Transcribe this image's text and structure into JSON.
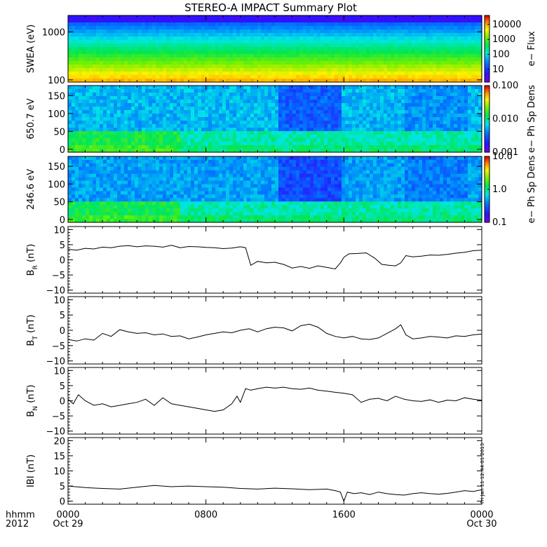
{
  "title": "STEREO-A IMPACT Summary Plot",
  "colors": {
    "line": "#000000",
    "frame": "#000000"
  },
  "x_axis": {
    "range_hours": [
      0,
      24
    ],
    "ticks": [
      {
        "hour": 0,
        "label": "0000",
        "sublabel": "Oct 29"
      },
      {
        "hour": 8,
        "label": "0800",
        "sublabel": ""
      },
      {
        "hour": 16,
        "label": "1600",
        "sublabel": ""
      },
      {
        "hour": 24,
        "label": "0000",
        "sublabel": "Oct 30"
      }
    ],
    "left_label_top": "hhmm",
    "left_label_bottom": "2012"
  },
  "timestamp_text": "Fri Jan 11 12:44:01 2013",
  "chart_data": [
    {
      "type": "heatmap",
      "ylabel": "SWEA (eV)",
      "yscale": "log",
      "ylim": [
        90,
        2200
      ],
      "yticks": [
        {
          "v": 100,
          "label": "100"
        },
        {
          "v": 1000,
          "label": "1000"
        }
      ],
      "colorbar": {
        "label": "e− Flux",
        "scale": "log",
        "range": [
          1.4,
          40000
        ],
        "ticks": [
          {
            "v": 10,
            "label": "10"
          },
          {
            "v": 100,
            "label": "100"
          },
          {
            "v": 1000,
            "label": "1000"
          },
          {
            "v": 10000,
            "label": "10000"
          }
        ]
      },
      "description_rows": "flux decreases with energy"
    },
    {
      "type": "heatmap",
      "ylabel": "650.7 eV",
      "yscale": "linear",
      "ylim": [
        -8,
        178
      ],
      "yticks": [
        {
          "v": 0,
          "label": "0"
        },
        {
          "v": 50,
          "label": "50"
        },
        {
          "v": 100,
          "label": "100"
        },
        {
          "v": 150,
          "label": "150"
        }
      ],
      "colorbar": {
        "label": "e− Ph Sp Dens",
        "scale": "log",
        "range": [
          0.001,
          0.1
        ],
        "ticks": [
          {
            "v": 0.001,
            "label": "0.001"
          },
          {
            "v": 0.01,
            "label": "0.010"
          },
          {
            "v": 0.1,
            "label": "0.100"
          }
        ]
      }
    },
    {
      "type": "heatmap",
      "ylabel": "246.6 eV",
      "yscale": "linear",
      "ylim": [
        -8,
        178
      ],
      "yticks": [
        {
          "v": 0,
          "label": "0"
        },
        {
          "v": 50,
          "label": "50"
        },
        {
          "v": 100,
          "label": "100"
        },
        {
          "v": 150,
          "label": "150"
        }
      ],
      "colorbar": {
        "label": "e− Ph Sp Dens",
        "scale": "log",
        "range": [
          0.1,
          10
        ],
        "ticks": [
          {
            "v": 0.1,
            "label": "0.1"
          },
          {
            "v": 1,
            "label": "1.0"
          },
          {
            "v": 10,
            "label": "10.0"
          }
        ]
      }
    },
    {
      "type": "line",
      "ylabel": "B_R (nT)",
      "ylabel_main": "B",
      "ylabel_sub": "R",
      "ylabel_unit": " (nT)",
      "ylim": [
        -11,
        11
      ],
      "yticks": [
        {
          "v": -10,
          "label": "−10"
        },
        {
          "v": -5,
          "label": "−5"
        },
        {
          "v": 0,
          "label": "0"
        },
        {
          "v": 5,
          "label": "5"
        },
        {
          "v": 10,
          "label": "10"
        }
      ],
      "x": [
        0,
        0.5,
        1,
        1.5,
        2,
        2.5,
        3,
        3.5,
        4,
        4.5,
        5,
        5.5,
        6,
        6.5,
        7,
        7.5,
        8,
        8.5,
        9,
        9.5,
        10,
        10.3,
        10.6,
        11,
        11.5,
        12,
        12.5,
        13,
        13.5,
        14,
        14.5,
        15,
        15.5,
        15.8,
        16,
        16.3,
        16.8,
        17.3,
        17.8,
        18.2,
        18.6,
        19,
        19.3,
        19.6,
        20,
        20.5,
        21,
        21.5,
        22,
        22.5,
        23,
        23.5,
        24
      ],
      "values": [
        3.5,
        3.2,
        3.8,
        3.6,
        4.2,
        4.0,
        4.5,
        4.7,
        4.3,
        4.6,
        4.5,
        4.2,
        4.8,
        4.0,
        4.4,
        4.3,
        4.1,
        4.0,
        3.7,
        3.9,
        4.3,
        4.0,
        -1.8,
        -0.5,
        -1.0,
        -0.8,
        -1.5,
        -2.7,
        -2.2,
        -2.8,
        -2.0,
        -2.5,
        -3.0,
        -1.0,
        0.8,
        2.0,
        2.1,
        2.3,
        0.5,
        -1.5,
        -1.8,
        -2.0,
        -1.0,
        1.4,
        1.0,
        1.2,
        1.6,
        1.5,
        1.8,
        2.2,
        2.5,
        3.0,
        3.2
      ]
    },
    {
      "type": "line",
      "ylabel": "B_T (nT)",
      "ylabel_main": "B",
      "ylabel_sub": "T",
      "ylabel_unit": " (nT)",
      "ylim": [
        -11,
        11
      ],
      "yticks": [
        {
          "v": -10,
          "label": "−10"
        },
        {
          "v": -5,
          "label": "−5"
        },
        {
          "v": 0,
          "label": "0"
        },
        {
          "v": 5,
          "label": "5"
        },
        {
          "v": 10,
          "label": "10"
        }
      ],
      "x": [
        0,
        0.5,
        1,
        1.5,
        2,
        2.5,
        3,
        3.5,
        4,
        4.5,
        5,
        5.5,
        6,
        6.5,
        7,
        7.5,
        8,
        8.5,
        9,
        9.5,
        10,
        10.5,
        11,
        11.5,
        12,
        12.5,
        13,
        13.5,
        14,
        14.5,
        15,
        15.5,
        16,
        16.5,
        17,
        17.5,
        18,
        18.5,
        19,
        19.3,
        19.6,
        20,
        20.5,
        21,
        21.5,
        22,
        22.5,
        23,
        23.5,
        24
      ],
      "values": [
        -3.0,
        -3.5,
        -2.8,
        -3.2,
        -1.0,
        -2.0,
        0.2,
        -0.5,
        -1.0,
        -0.8,
        -1.5,
        -1.2,
        -2.0,
        -1.8,
        -2.8,
        -2.2,
        -1.5,
        -1.0,
        -0.5,
        -0.8,
        0.0,
        0.5,
        -0.5,
        0.5,
        1.0,
        0.8,
        -0.2,
        1.5,
        2.0,
        1.0,
        -1.0,
        -2.0,
        -2.5,
        -2.0,
        -2.8,
        -3.0,
        -2.5,
        -1.0,
        0.5,
        1.8,
        -1.5,
        -2.8,
        -2.5,
        -2.0,
        -2.2,
        -2.5,
        -1.8,
        -2.0,
        -1.5,
        -1.2
      ]
    },
    {
      "type": "line",
      "ylabel": "B_N (nT)",
      "ylabel_main": "B",
      "ylabel_sub": "N",
      "ylabel_unit": " (nT)",
      "ylim": [
        -11,
        11
      ],
      "yticks": [
        {
          "v": -10,
          "label": "−10"
        },
        {
          "v": -5,
          "label": "−5"
        },
        {
          "v": 0,
          "label": "0"
        },
        {
          "v": 5,
          "label": "5"
        },
        {
          "v": 10,
          "label": "10"
        }
      ],
      "x": [
        0,
        0.3,
        0.6,
        1,
        1.5,
        2,
        2.5,
        3,
        3.5,
        4,
        4.5,
        5,
        5.5,
        6,
        6.5,
        7,
        7.5,
        8,
        8.5,
        9,
        9.5,
        9.8,
        10,
        10.3,
        10.6,
        11,
        11.5,
        12,
        12.5,
        13,
        13.5,
        14,
        14.5,
        15,
        15.5,
        16,
        16.5,
        17,
        17.5,
        18,
        18.5,
        19,
        19.5,
        20,
        20.5,
        21,
        21.5,
        22,
        22.5,
        23,
        23.5,
        24
      ],
      "values": [
        0.5,
        -1.0,
        2.0,
        0.0,
        -1.5,
        -1.0,
        -2.0,
        -1.5,
        -1.0,
        -0.5,
        0.5,
        -1.5,
        1.0,
        -1.0,
        -1.5,
        -2.0,
        -2.5,
        -3.0,
        -3.5,
        -3.0,
        -1.0,
        1.5,
        -0.5,
        4.0,
        3.5,
        4.0,
        4.5,
        4.2,
        4.5,
        4.0,
        3.8,
        4.2,
        3.5,
        3.2,
        2.8,
        2.5,
        2.0,
        -0.5,
        0.5,
        0.8,
        0.0,
        1.5,
        0.5,
        0.0,
        -0.2,
        0.3,
        -0.5,
        0.2,
        0.0,
        1.0,
        0.5,
        0.2
      ]
    },
    {
      "type": "line",
      "ylabel": "|B| (nT)",
      "ylabel_main": "IBI",
      "ylabel_sub": "",
      "ylabel_unit": " (nT)",
      "ylim": [
        -1,
        21
      ],
      "yticks": [
        {
          "v": 0,
          "label": "0"
        },
        {
          "v": 5,
          "label": "5"
        },
        {
          "v": 10,
          "label": "10"
        },
        {
          "v": 15,
          "label": "15"
        },
        {
          "v": 20,
          "label": "20"
        }
      ],
      "x": [
        0,
        1,
        2,
        3,
        4,
        5,
        6,
        7,
        8,
        9,
        10,
        11,
        12,
        13,
        14,
        15,
        15.5,
        15.8,
        16,
        16.2,
        16.6,
        17,
        17.5,
        18,
        18.5,
        19,
        19.5,
        20,
        20.5,
        21,
        21.5,
        22,
        22.5,
        23,
        23.5,
        24
      ],
      "values": [
        5.0,
        4.5,
        4.2,
        4.0,
        4.6,
        5.2,
        4.8,
        5.0,
        4.8,
        4.6,
        4.2,
        4.0,
        4.3,
        4.1,
        3.8,
        4.0,
        3.5,
        3.0,
        0.0,
        3.0,
        2.5,
        2.8,
        2.2,
        3.0,
        2.5,
        2.2,
        2.0,
        2.5,
        2.8,
        2.5,
        2.3,
        2.6,
        3.0,
        3.5,
        3.2,
        3.8
      ]
    }
  ]
}
